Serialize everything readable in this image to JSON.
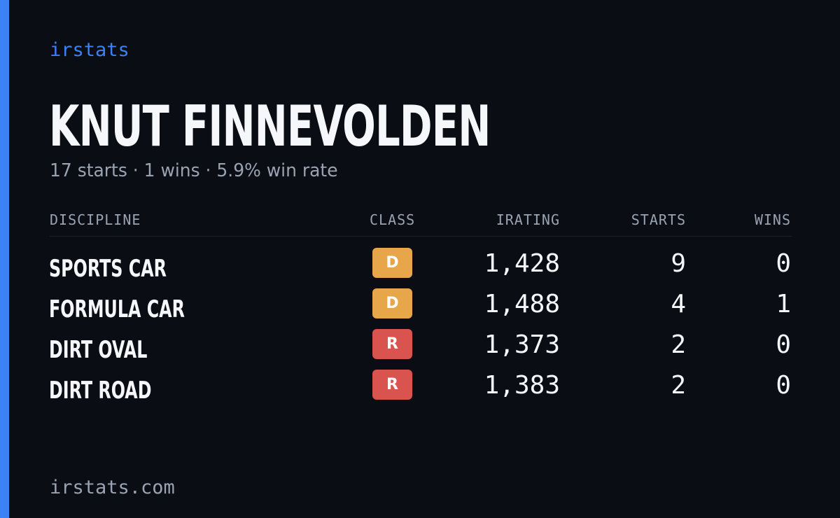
{
  "brand": "irstats",
  "driver": {
    "name": "KNUT FINNEVOLDEN",
    "summary": "17 starts · 1 wins · 5.9% win rate"
  },
  "table": {
    "headers": {
      "discipline": "DISCIPLINE",
      "class": "CLASS",
      "irating": "IRATING",
      "starts": "STARTS",
      "wins": "WINS"
    },
    "rows": [
      {
        "discipline": "SPORTS CAR",
        "class": "D",
        "class_color": "#e8a64a",
        "irating": "1,428",
        "starts": "9",
        "wins": "0"
      },
      {
        "discipline": "FORMULA CAR",
        "class": "D",
        "class_color": "#e8a64a",
        "irating": "1,488",
        "starts": "4",
        "wins": "1"
      },
      {
        "discipline": "DIRT OVAL",
        "class": "R",
        "class_color": "#d9534f",
        "irating": "1,373",
        "starts": "2",
        "wins": "0"
      },
      {
        "discipline": "DIRT ROAD",
        "class": "R",
        "class_color": "#d9534f",
        "irating": "1,383",
        "starts": "2",
        "wins": "0"
      }
    ]
  },
  "footer": "irstats.com",
  "colors": {
    "accent": "#3b82f6",
    "background": "#0a0d14",
    "muted_text": "#9aa3b2",
    "class_d": "#e8a64a",
    "class_r": "#d9534f"
  }
}
